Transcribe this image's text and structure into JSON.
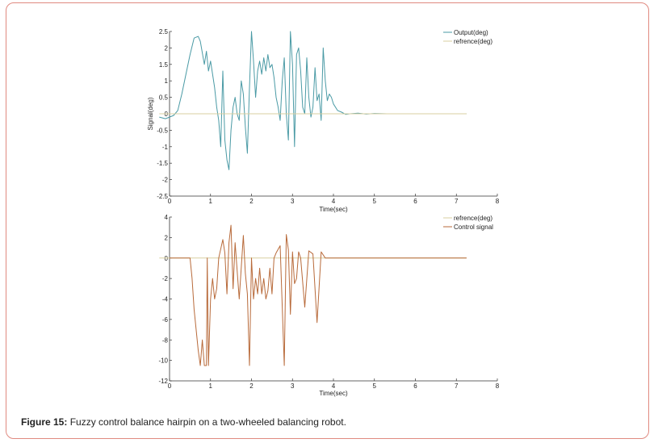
{
  "caption": {
    "label": "Figure 15:",
    "text": "Fuzzy control balance hairpin on a two-wheeled balancing robot."
  },
  "colors": {
    "output": "#4a9aa5",
    "reference": "#d8cfa0",
    "control": "#b86a3a",
    "axis": "#333333"
  },
  "chart_data": [
    {
      "type": "line",
      "xlabel": "Time(sec)",
      "ylabel": "Signal(deg)",
      "xlim": [
        0,
        8
      ],
      "ylim": [
        -2.5,
        2.5
      ],
      "xticks": [
        "0",
        "1",
        "2",
        "3",
        "4",
        "5",
        "6",
        "7",
        "8"
      ],
      "yticks": [
        "2.5",
        "2",
        "1.5",
        "1",
        "0.5",
        "0",
        "-0.5",
        "-1",
        "-1.5",
        "-2",
        "-2.5"
      ],
      "legend": [
        "Output(deg)",
        "refrence(deg)"
      ],
      "legend_position": "top-right",
      "series": [
        {
          "name": "Output(deg)",
          "x": [
            -0.25,
            -0.1,
            0,
            0.1,
            0.2,
            0.3,
            0.4,
            0.5,
            0.6,
            0.7,
            0.75,
            0.85,
            0.9,
            0.95,
            1.0,
            1.05,
            1.1,
            1.15,
            1.2,
            1.25,
            1.3,
            1.35,
            1.4,
            1.45,
            1.5,
            1.55,
            1.6,
            1.65,
            1.7,
            1.75,
            1.8,
            1.85,
            1.9,
            1.95,
            2.0,
            2.05,
            2.1,
            2.15,
            2.2,
            2.25,
            2.3,
            2.35,
            2.4,
            2.45,
            2.5,
            2.55,
            2.6,
            2.65,
            2.7,
            2.75,
            2.8,
            2.85,
            2.9,
            2.95,
            3.0,
            3.05,
            3.1,
            3.15,
            3.2,
            3.25,
            3.3,
            3.35,
            3.4,
            3.45,
            3.5,
            3.55,
            3.6,
            3.65,
            3.7,
            3.75,
            3.8,
            3.85,
            3.9,
            3.95,
            4.0,
            4.1,
            4.2,
            4.3,
            4.4,
            4.6,
            4.8,
            5.0,
            5.3,
            5.6,
            6.0,
            6.5,
            7.0,
            7.25
          ],
          "y": [
            -0.1,
            -0.15,
            -0.1,
            -0.05,
            0.1,
            0.6,
            1.2,
            1.8,
            2.3,
            2.35,
            2.2,
            1.5,
            1.9,
            1.3,
            1.6,
            1.2,
            0.8,
            0.2,
            -0.2,
            -1.0,
            1.3,
            -0.8,
            -1.4,
            -1.7,
            -0.5,
            0.2,
            0.5,
            0.0,
            -0.2,
            1.0,
            0.6,
            -0.4,
            -1.2,
            0.8,
            2.5,
            1.6,
            0.5,
            1.3,
            1.6,
            1.2,
            1.7,
            1.3,
            1.8,
            1.4,
            1.5,
            1.1,
            0.5,
            0.2,
            -0.2,
            1.0,
            1.7,
            0.0,
            -0.8,
            2.5,
            1.5,
            -1.0,
            1.8,
            2.0,
            1.3,
            0.2,
            0.0,
            1.7,
            0.5,
            -0.1,
            0.2,
            1.4,
            0.4,
            0.6,
            -0.2,
            2.0,
            1.0,
            0.4,
            0.6,
            0.5,
            0.3,
            0.1,
            0.05,
            -0.02,
            0.0,
            0.02,
            -0.01,
            0.01,
            0.0,
            0.0,
            0.0,
            0.0,
            0.0,
            0.0
          ]
        },
        {
          "name": "refrence(deg)",
          "x": [
            -0.25,
            7.25
          ],
          "y": [
            0,
            0
          ]
        }
      ]
    },
    {
      "type": "line",
      "xlabel": "Time(sec)",
      "ylabel": "",
      "xlim": [
        0,
        8
      ],
      "ylim": [
        -12,
        4
      ],
      "xticks": [
        "0",
        "1",
        "2",
        "3",
        "4",
        "5",
        "6",
        "7",
        "8"
      ],
      "yticks": [
        "4",
        "2",
        "0",
        "-2",
        "-4",
        "-6",
        "-8",
        "-10",
        "-12"
      ],
      "legend": [
        "refrence(deg)",
        "Control signal"
      ],
      "legend_position": "top-right",
      "series": [
        {
          "name": "refrence(deg)",
          "x": [
            -0.25,
            7.25
          ],
          "y": [
            0,
            0
          ]
        },
        {
          "name": "Control signal",
          "x": [
            0,
            0.5,
            0.55,
            0.6,
            0.7,
            0.75,
            0.8,
            0.85,
            0.9,
            0.92,
            0.95,
            1.0,
            1.05,
            1.1,
            1.15,
            1.2,
            1.3,
            1.35,
            1.4,
            1.45,
            1.5,
            1.55,
            1.6,
            1.7,
            1.8,
            1.85,
            1.9,
            1.95,
            2.0,
            2.05,
            2.1,
            2.15,
            2.2,
            2.25,
            2.3,
            2.35,
            2.4,
            2.45,
            2.5,
            2.55,
            2.6,
            2.7,
            2.8,
            2.85,
            2.9,
            2.95,
            3.0,
            3.05,
            3.1,
            3.15,
            3.2,
            3.3,
            3.4,
            3.5,
            3.6,
            3.7,
            3.8,
            4.0,
            7.25
          ],
          "y": [
            0,
            0,
            -2,
            -5,
            -9,
            -10.5,
            -8,
            -10.5,
            -10.5,
            0,
            -10.5,
            -4,
            -2,
            -4,
            -3,
            0,
            1.8,
            0.5,
            -3.5,
            1.5,
            3.2,
            -3,
            1.5,
            -4,
            2.2,
            -1.5,
            -3.5,
            -10.5,
            0,
            -4,
            -2,
            -3.5,
            -1,
            -3.5,
            -2,
            -4,
            -3.2,
            -1,
            -3.5,
            0,
            0.5,
            1.2,
            -10.5,
            2.3,
            0.8,
            -5.5,
            0.6,
            -2.5,
            -2,
            0.6,
            0,
            -4.8,
            0.7,
            0.4,
            -6.3,
            0.6,
            0,
            0,
            0
          ]
        }
      ]
    }
  ]
}
